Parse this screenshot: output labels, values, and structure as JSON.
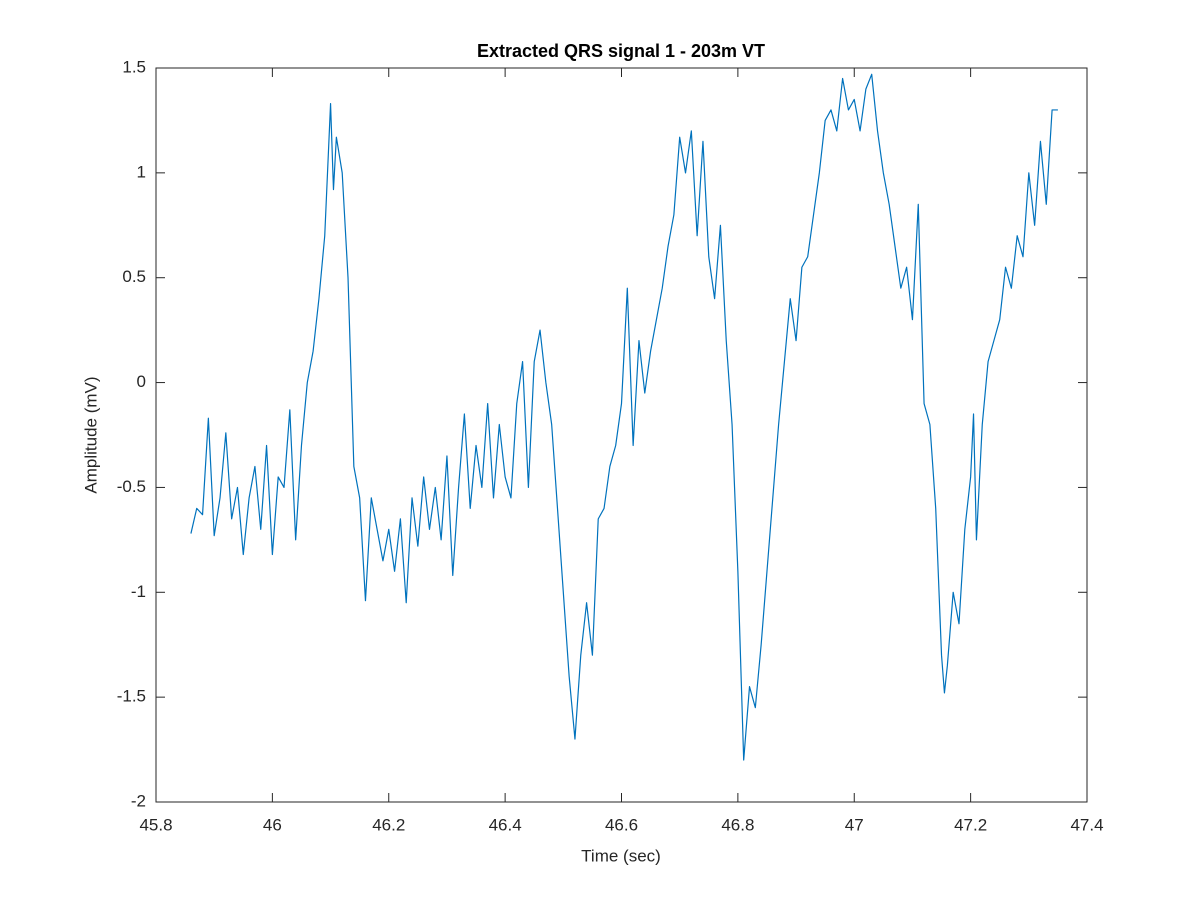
{
  "chart_data": {
    "type": "line",
    "title": "Extracted QRS signal 1 - 203m VT",
    "x_label": "Time (sec)",
    "y_label": "Amplitude (mV)",
    "x": [
      45.86,
      45.87,
      45.88,
      45.89,
      45.9,
      45.91,
      45.92,
      45.93,
      45.94,
      45.95,
      45.96,
      45.97,
      45.98,
      45.99,
      46,
      46.01,
      46.02,
      46.03,
      46.04,
      46.05,
      46.06,
      46.07,
      46.08,
      46.09,
      46.1,
      46.105,
      46.11,
      46.12,
      46.13,
      46.14,
      46.15,
      46.16,
      46.17,
      46.18,
      46.19,
      46.2,
      46.21,
      46.22,
      46.23,
      46.24,
      46.25,
      46.26,
      46.27,
      46.28,
      46.29,
      46.3,
      46.31,
      46.32,
      46.33,
      46.34,
      46.35,
      46.36,
      46.37,
      46.38,
      46.39,
      46.4,
      46.41,
      46.42,
      46.43,
      46.44,
      46.45,
      46.46,
      46.47,
      46.48,
      46.49,
      46.5,
      46.51,
      46.52,
      46.53,
      46.54,
      46.55,
      46.56,
      46.57,
      46.58,
      46.59,
      46.6,
      46.61,
      46.62,
      46.63,
      46.64,
      46.65,
      46.66,
      46.67,
      46.68,
      46.69,
      46.7,
      46.71,
      46.72,
      46.73,
      46.74,
      46.75,
      46.76,
      46.77,
      46.78,
      46.79,
      46.8,
      46.81,
      46.82,
      46.83,
      46.84,
      46.85,
      46.86,
      46.87,
      46.88,
      46.89,
      46.9,
      46.91,
      46.92,
      46.93,
      46.94,
      46.95,
      46.96,
      46.97,
      46.98,
      46.99,
      47,
      47.01,
      47.02,
      47.03,
      47.04,
      47.05,
      47.06,
      47.07,
      47.08,
      47.09,
      47.1,
      47.11,
      47.12,
      47.13,
      47.14,
      47.15,
      47.155,
      47.16,
      47.17,
      47.18,
      47.19,
      47.2,
      47.205,
      47.21,
      47.22,
      47.23,
      47.24,
      47.25,
      47.26,
      47.27,
      47.28,
      47.29,
      47.3,
      47.31,
      47.32,
      47.33,
      47.34,
      47.35
    ],
    "series": [
      {
        "name": "QRS signal",
        "color": "#0072bd",
        "values": [
          -0.72,
          -0.6,
          -0.63,
          -0.17,
          -0.73,
          -0.55,
          -0.24,
          -0.65,
          -0.5,
          -0.82,
          -0.55,
          -0.4,
          -0.7,
          -0.3,
          -0.82,
          -0.45,
          -0.5,
          -0.13,
          -0.75,
          -0.3,
          0,
          0.15,
          0.4,
          0.7,
          1.33,
          0.92,
          1.17,
          1,
          0.5,
          -0.4,
          -0.55,
          -1.04,
          -0.55,
          -0.7,
          -0.85,
          -0.7,
          -0.9,
          -0.65,
          -1.05,
          -0.55,
          -0.78,
          -0.45,
          -0.7,
          -0.5,
          -0.75,
          -0.35,
          -0.92,
          -0.5,
          -0.15,
          -0.6,
          -0.3,
          -0.5,
          -0.1,
          -0.55,
          -0.2,
          -0.45,
          -0.55,
          -0.1,
          0.1,
          -0.5,
          0.1,
          0.25,
          0,
          -0.2,
          -0.6,
          -1,
          -1.4,
          -1.7,
          -1.3,
          -1.05,
          -1.3,
          -0.65,
          -0.6,
          -0.4,
          -0.3,
          -0.1,
          0.45,
          -0.3,
          0.2,
          -0.05,
          0.15,
          0.3,
          0.45,
          0.65,
          0.8,
          1.17,
          1,
          1.2,
          0.7,
          1.15,
          0.6,
          0.4,
          0.75,
          0.2,
          -0.2,
          -0.9,
          -1.8,
          -1.45,
          -1.55,
          -1.25,
          -0.9,
          -0.55,
          -0.2,
          0.1,
          0.4,
          0.2,
          0.55,
          0.6,
          0.8,
          1,
          1.25,
          1.3,
          1.2,
          1.45,
          1.3,
          1.35,
          1.2,
          1.4,
          1.47,
          1.2,
          1,
          0.85,
          0.65,
          0.45,
          0.55,
          0.3,
          0.85,
          -0.1,
          -0.2,
          -0.6,
          -1.3,
          -1.48,
          -1.35,
          -1,
          -1.15,
          -0.7,
          -0.45,
          -0.15,
          -0.75,
          -0.2,
          0.1,
          0.2,
          0.3,
          0.55,
          0.45,
          0.7,
          0.6,
          1,
          0.75,
          1.15,
          0.85,
          1.3,
          1.3
        ]
      }
    ],
    "xlim": [
      45.8,
      47.4
    ],
    "xticks": [
      45.8,
      46,
      46.2,
      46.4,
      46.6,
      46.8,
      47,
      47.2,
      47.4
    ],
    "ylim": [
      -2,
      1.5
    ],
    "yticks": [
      -2,
      -1.5,
      -1,
      -0.5,
      0,
      0.5,
      1,
      1.5
    ],
    "grid": false
  }
}
